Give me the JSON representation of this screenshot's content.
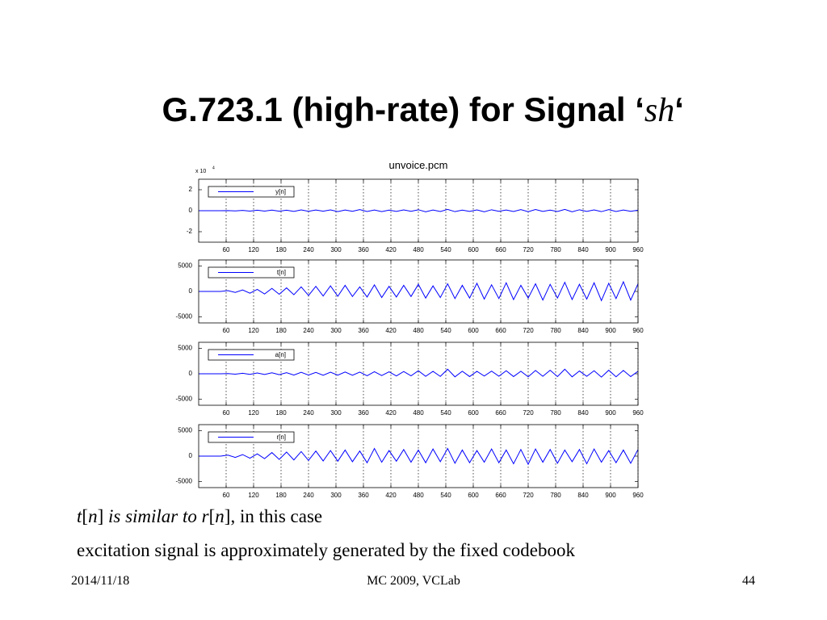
{
  "slide": {
    "title": [
      "G.723.1 (high-rate) for Signal ‘",
      "sh",
      "‘"
    ],
    "body": [
      [
        "t",
        "[",
        "n",
        "] ",
        "is similar to ",
        "r",
        "[",
        "n",
        "], in this case"
      ],
      [
        "excitation signal is approximately generated by the fixed codebook"
      ]
    ],
    "footer": {
      "date": "2014/11/18",
      "center": "MC 2009, VCLab",
      "page": "44"
    }
  },
  "chart_data": [
    {
      "type": "line",
      "title": "unvoice.pcm",
      "y_multiplier": "x 10",
      "y_multiplier_exp": "4",
      "x": [
        0,
        16,
        32,
        48,
        64,
        80,
        96,
        112,
        128,
        144,
        160,
        176,
        192,
        208,
        224,
        240,
        256,
        272,
        288,
        304,
        320,
        336,
        352,
        368,
        384,
        400,
        416,
        432,
        448,
        464,
        480,
        496,
        512,
        528,
        544,
        560,
        576,
        592,
        608,
        624,
        640,
        656,
        672,
        688,
        704,
        720,
        736,
        752,
        768,
        784,
        800,
        816,
        832,
        848,
        864,
        880,
        896,
        912,
        928,
        944,
        960
      ],
      "series": [
        {
          "name": "y[n]",
          "color": "#0000ff",
          "values": [
            0,
            0,
            0,
            0,
            0.01,
            -0.02,
            0.03,
            -0.04,
            0.05,
            -0.04,
            0.06,
            -0.05,
            0.05,
            -0.07,
            0.08,
            -0.06,
            0.07,
            -0.05,
            0.08,
            -0.09,
            0.07,
            -0.06,
            0.1,
            -0.08,
            0.07,
            -0.09,
            0.06,
            -0.07,
            0.08,
            -0.06,
            0.09,
            -0.1,
            0.07,
            -0.08,
            0.12,
            -0.09,
            0.06,
            -0.07,
            0.08,
            -0.1,
            0.09,
            -0.06,
            0.07,
            -0.08,
            0.1,
            -0.09,
            0.11,
            -0.07,
            0.06,
            -0.08,
            0.12,
            -0.1,
            0.09,
            -0.07,
            0.08,
            -0.09,
            0.1,
            -0.08,
            0.07,
            -0.06,
            0.05
          ]
        }
      ],
      "xlim": [
        0,
        960
      ],
      "xticks": [
        60,
        120,
        180,
        240,
        300,
        360,
        420,
        480,
        540,
        600,
        660,
        720,
        780,
        840,
        900,
        960
      ],
      "ylim": [
        -3,
        3
      ],
      "yticks": [
        2,
        0,
        -2
      ],
      "grid": true,
      "legend": "upper left"
    },
    {
      "type": "line",
      "x": [
        0,
        16,
        32,
        48,
        64,
        80,
        96,
        112,
        128,
        144,
        160,
        176,
        192,
        208,
        224,
        240,
        256,
        272,
        288,
        304,
        320,
        336,
        352,
        368,
        384,
        400,
        416,
        432,
        448,
        464,
        480,
        496,
        512,
        528,
        544,
        560,
        576,
        592,
        608,
        624,
        640,
        656,
        672,
        688,
        704,
        720,
        736,
        752,
        768,
        784,
        800,
        816,
        832,
        848,
        864,
        880,
        896,
        912,
        928,
        944,
        960
      ],
      "series": [
        {
          "name": "t[n]",
          "color": "#0000ff",
          "values": [
            0,
            0,
            0,
            0,
            150,
            -200,
            300,
            -350,
            400,
            -500,
            600,
            -550,
            700,
            -650,
            900,
            -800,
            1000,
            -900,
            1100,
            -950,
            1200,
            -1000,
            900,
            -1100,
            1300,
            -1200,
            1000,
            -1100,
            1200,
            -1000,
            1400,
            -1300,
            1100,
            -1200,
            1500,
            -1400,
            1200,
            -1300,
            1600,
            -1500,
            1300,
            -1400,
            1700,
            -1600,
            1200,
            -1300,
            1500,
            -1700,
            1400,
            -1300,
            1800,
            -1600,
            1400,
            -1500,
            1700,
            -1800,
            1600,
            -1400,
            1900,
            -1700,
            1500
          ]
        }
      ],
      "xlim": [
        0,
        960
      ],
      "xticks": [
        60,
        120,
        180,
        240,
        300,
        360,
        420,
        480,
        540,
        600,
        660,
        720,
        780,
        840,
        900,
        960
      ],
      "ylim": [
        -6200,
        6200
      ],
      "yticks": [
        5000,
        0,
        -5000
      ],
      "grid": true,
      "legend": "upper left"
    },
    {
      "type": "line",
      "x": [
        0,
        16,
        32,
        48,
        64,
        80,
        96,
        112,
        128,
        144,
        160,
        176,
        192,
        208,
        224,
        240,
        256,
        272,
        288,
        304,
        320,
        336,
        352,
        368,
        384,
        400,
        416,
        432,
        448,
        464,
        480,
        496,
        512,
        528,
        544,
        560,
        576,
        592,
        608,
        624,
        640,
        656,
        672,
        688,
        704,
        720,
        736,
        752,
        768,
        784,
        800,
        816,
        832,
        848,
        864,
        880,
        896,
        912,
        928,
        944,
        960
      ],
      "series": [
        {
          "name": "a[n]",
          "color": "#0000ff",
          "values": [
            0,
            0,
            0,
            0,
            50,
            -80,
            100,
            -120,
            150,
            -130,
            200,
            -180,
            220,
            -250,
            300,
            -260,
            280,
            -300,
            320,
            -280,
            350,
            -300,
            330,
            -380,
            400,
            -350,
            380,
            -420,
            450,
            -400,
            600,
            -500,
            480,
            -520,
            900,
            -600,
            500,
            -550,
            480,
            -450,
            520,
            -480,
            600,
            -550,
            500,
            -600,
            650,
            -500,
            700,
            -550,
            900,
            -600,
            550,
            -500,
            600,
            -650,
            700,
            -600,
            650,
            -550,
            500
          ]
        }
      ],
      "xlim": [
        0,
        960
      ],
      "xticks": [
        60,
        120,
        180,
        240,
        300,
        360,
        420,
        480,
        540,
        600,
        660,
        720,
        780,
        840,
        900,
        960
      ],
      "ylim": [
        -6200,
        6200
      ],
      "yticks": [
        5000,
        0,
        -5000
      ],
      "grid": true,
      "legend": "upper left"
    },
    {
      "type": "line",
      "x": [
        0,
        16,
        32,
        48,
        64,
        80,
        96,
        112,
        128,
        144,
        160,
        176,
        192,
        208,
        224,
        240,
        256,
        272,
        288,
        304,
        320,
        336,
        352,
        368,
        384,
        400,
        416,
        432,
        448,
        464,
        480,
        496,
        512,
        528,
        544,
        560,
        576,
        592,
        608,
        624,
        640,
        656,
        672,
        688,
        704,
        720,
        736,
        752,
        768,
        784,
        800,
        816,
        832,
        848,
        864,
        880,
        896,
        912,
        928,
        944,
        960
      ],
      "series": [
        {
          "name": "r[n]",
          "color": "#0000ff",
          "values": [
            0,
            0,
            0,
            0,
            200,
            -250,
            300,
            -400,
            450,
            -500,
            700,
            -650,
            800,
            -750,
            900,
            -850,
            1000,
            -950,
            1100,
            -1000,
            1200,
            -1100,
            1000,
            -1300,
            1500,
            -1200,
            1100,
            -1000,
            1300,
            -1200,
            1200,
            -1300,
            1400,
            -1100,
            1500,
            -1400,
            1200,
            -1300,
            1100,
            -1200,
            1400,
            -1300,
            1200,
            -1500,
            1300,
            -1600,
            1400,
            -1200,
            1300,
            -1400,
            1200,
            -1100,
            1300,
            -1500,
            1400,
            -1200,
            1100,
            -1300,
            1200,
            -1400,
            1300
          ]
        }
      ],
      "xlim": [
        0,
        960
      ],
      "xticks": [
        60,
        120,
        180,
        240,
        300,
        360,
        420,
        480,
        540,
        600,
        660,
        720,
        780,
        840,
        900,
        960
      ],
      "ylim": [
        -6200,
        6200
      ],
      "yticks": [
        5000,
        0,
        -5000
      ],
      "grid": true,
      "legend": "upper left"
    }
  ]
}
